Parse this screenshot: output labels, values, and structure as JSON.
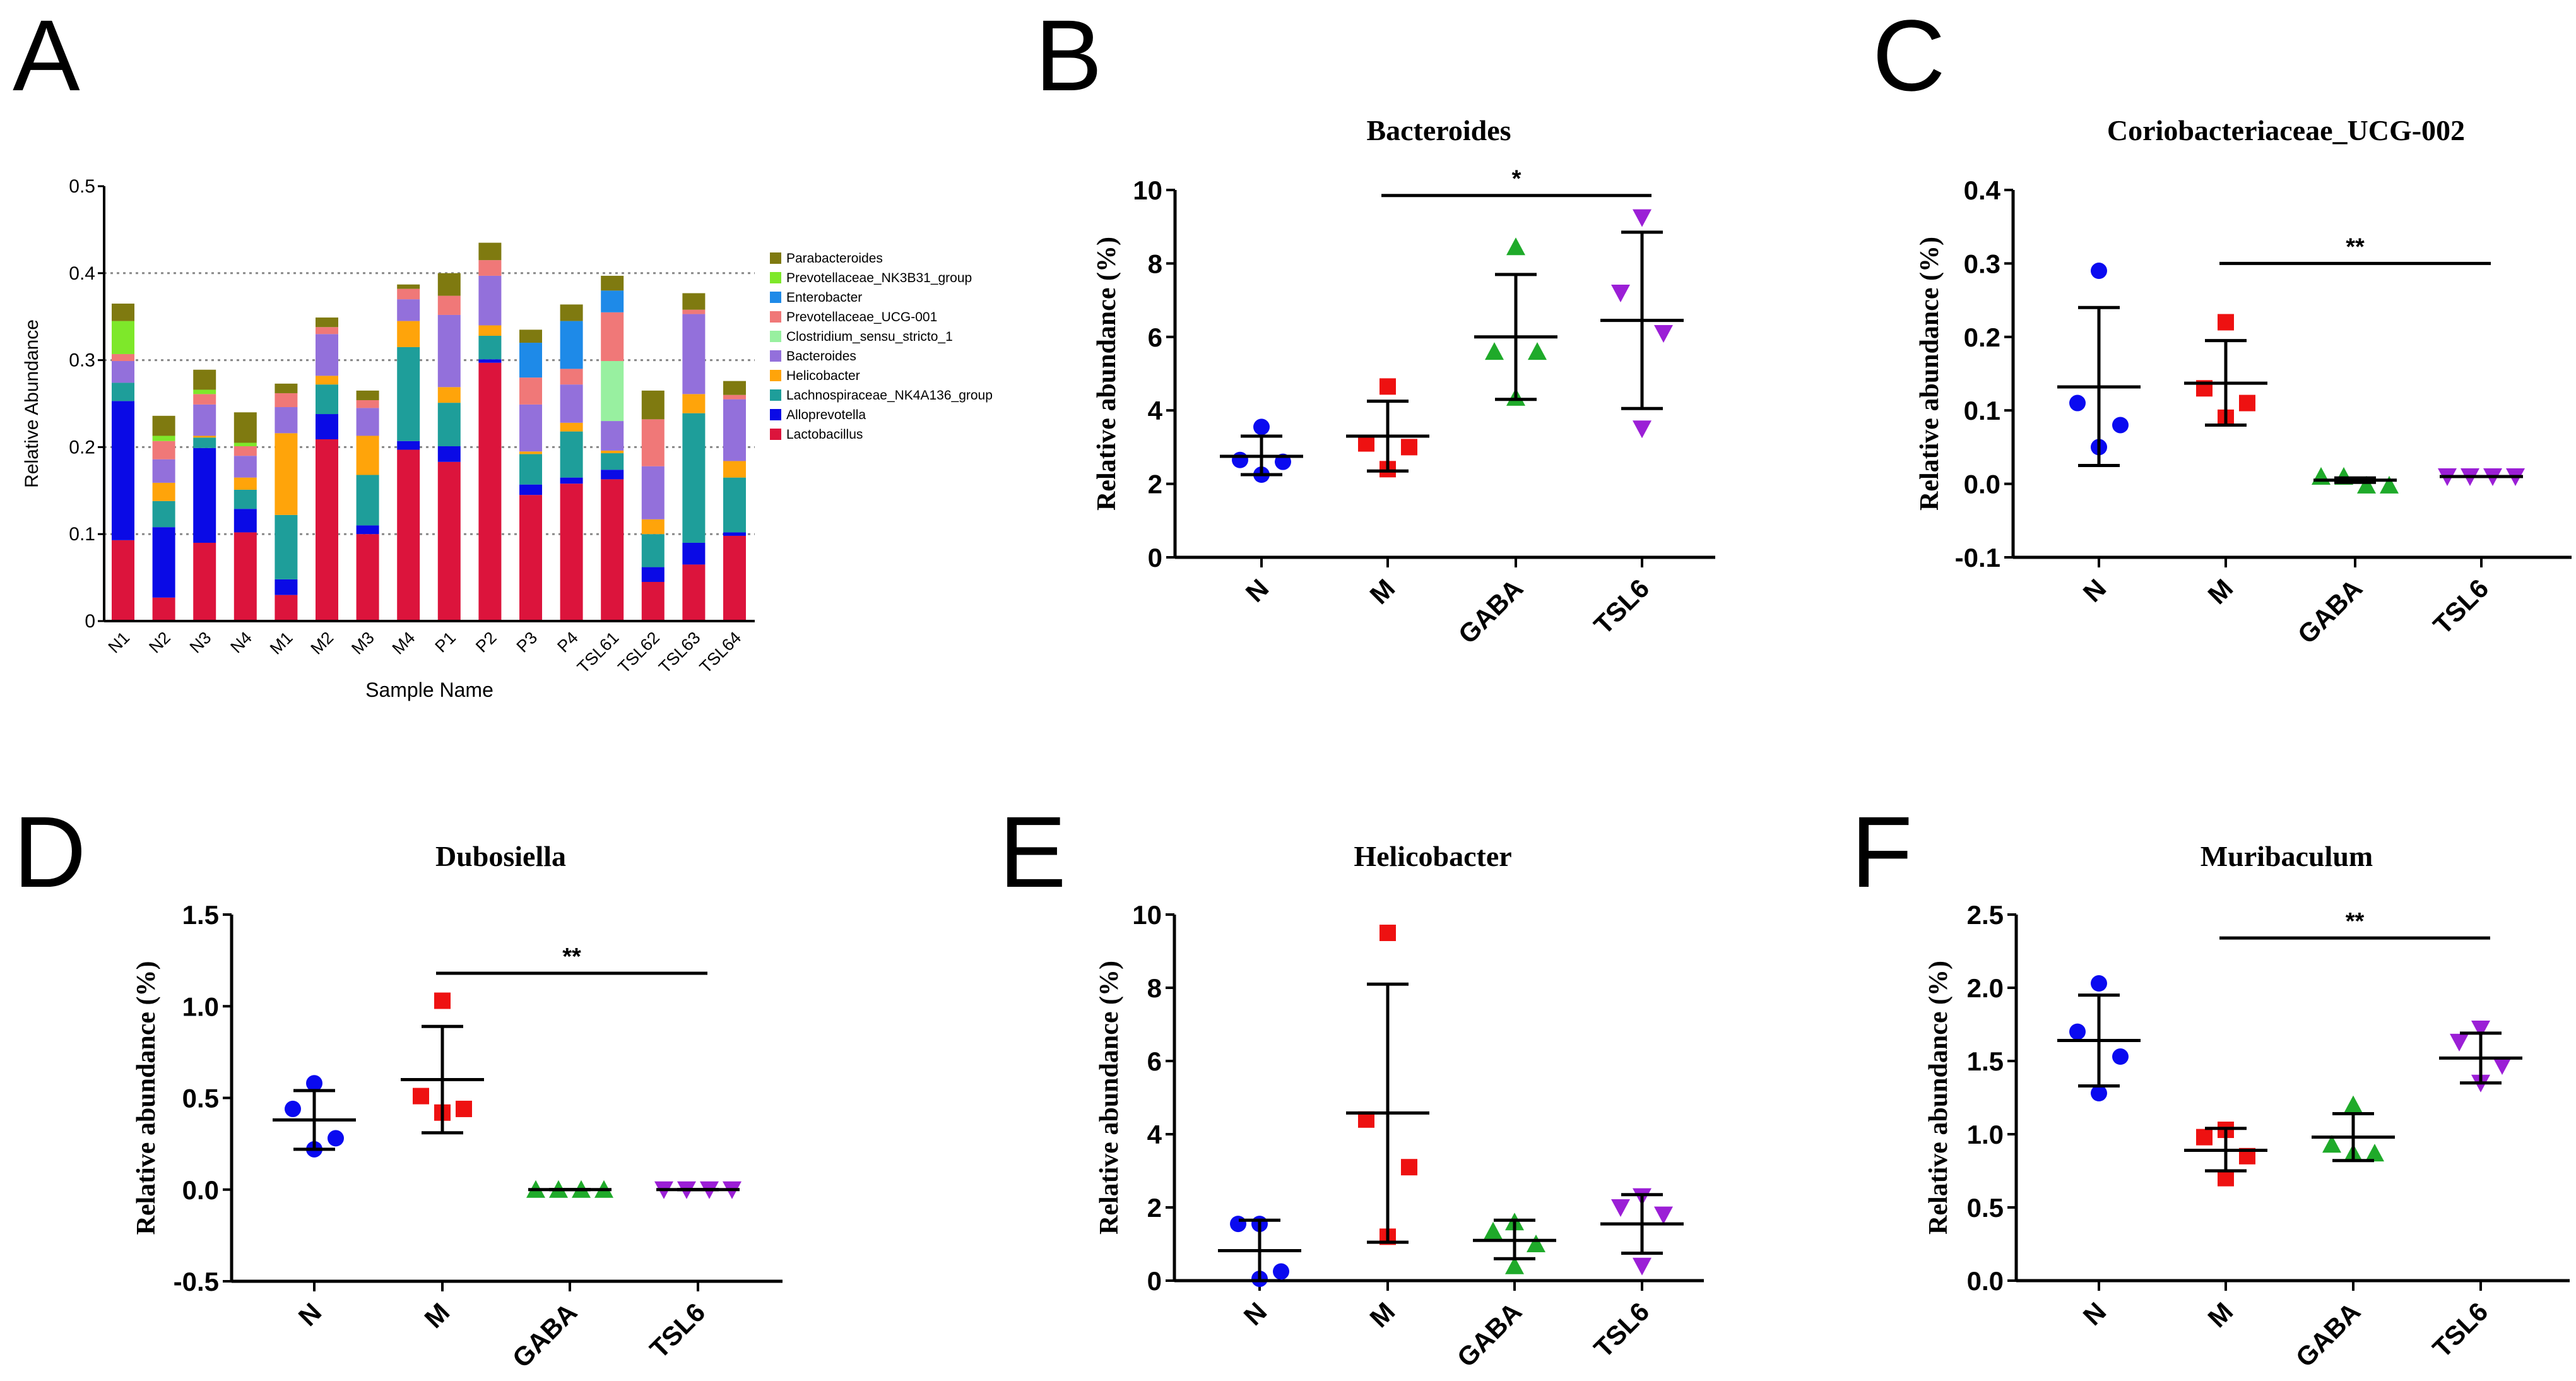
{
  "chart_data": [
    {
      "panel": "A",
      "type": "bar",
      "stacked": true,
      "title": "",
      "xlabel": "Sample Name",
      "ylabel": "Relative Abundance",
      "ylim": [
        0,
        0.5
      ],
      "yticks": [
        "0",
        "0.1",
        "0.2",
        "0.3",
        "0.4",
        "0.5"
      ],
      "grid": "dotted horizontal at 0.1-0.4",
      "legend_position": "right",
      "categories": [
        "N1",
        "N2",
        "N3",
        "N4",
        "M1",
        "M2",
        "M3",
        "M4",
        "P1",
        "P2",
        "P3",
        "P4",
        "TSL61",
        "TSL62",
        "TSL63",
        "TSL64"
      ],
      "series": [
        {
          "name": "Lactobacillus",
          "color": "#dc143c",
          "values": [
            0.093,
            0.027,
            0.09,
            0.102,
            0.03,
            0.209,
            0.1,
            0.197,
            0.183,
            0.297,
            0.145,
            0.158,
            0.163,
            0.045,
            0.065,
            0.098
          ]
        },
        {
          "name": "Alloprevotella",
          "color": "#0a0ae6",
          "values": [
            0.16,
            0.081,
            0.109,
            0.027,
            0.018,
            0.029,
            0.01,
            0.01,
            0.018,
            0.004,
            0.012,
            0.007,
            0.011,
            0.017,
            0.025,
            0.004
          ]
        },
        {
          "name": "Lachnospiraceae_NK4A136_group",
          "color": "#1e9e9a",
          "values": [
            0.021,
            0.03,
            0.012,
            0.022,
            0.074,
            0.034,
            0.058,
            0.108,
            0.05,
            0.027,
            0.035,
            0.053,
            0.019,
            0.038,
            0.149,
            0.063
          ]
        },
        {
          "name": "Helicobacter",
          "color": "#ffa40a",
          "values": [
            0,
            0.021,
            0.002,
            0.014,
            0.094,
            0.01,
            0.045,
            0.03,
            0.018,
            0.012,
            0.003,
            0.01,
            0.003,
            0.017,
            0.022,
            0.019
          ]
        },
        {
          "name": "Bacteroides",
          "color": "#9370db",
          "values": [
            0.025,
            0.027,
            0.036,
            0.025,
            0.03,
            0.048,
            0.032,
            0.025,
            0.083,
            0.057,
            0.054,
            0.044,
            0.034,
            0.061,
            0.092,
            0.071
          ]
        },
        {
          "name": "Clostridium_sensu_stricto_1",
          "color": "#98f0a0",
          "values": [
            0,
            0,
            0,
            0,
            0,
            0,
            0,
            0,
            0,
            0,
            0,
            0,
            0.069,
            0,
            0,
            0
          ]
        },
        {
          "name": "Prevotellaceae_UCG-001",
          "color": "#f07878",
          "values": [
            0.008,
            0.021,
            0.012,
            0.011,
            0.016,
            0.008,
            0.009,
            0.012,
            0.022,
            0.018,
            0.031,
            0.018,
            0.056,
            0.054,
            0.005,
            0.005
          ]
        },
        {
          "name": "Enterobacter",
          "color": "#1e8ae8",
          "values": [
            0,
            0,
            0,
            0,
            0,
            0,
            0,
            0,
            0,
            0,
            0.04,
            0.055,
            0.025,
            0,
            0,
            0
          ]
        },
        {
          "name": "Prevotellaceae_NK3B31_group",
          "color": "#7ee82a",
          "values": [
            0.038,
            0.006,
            0.005,
            0.004,
            0,
            0,
            0,
            0,
            0,
            0,
            0,
            0,
            0,
            0,
            0,
            0
          ]
        },
        {
          "name": "Parabacteroides",
          "color": "#7f7a10",
          "values": [
            0.02,
            0.023,
            0.023,
            0.035,
            0.011,
            0.011,
            0.011,
            0.005,
            0.026,
            0.02,
            0.015,
            0.019,
            0.017,
            0.033,
            0.019,
            0.016
          ]
        }
      ]
    },
    {
      "panel": "B",
      "type": "scatter",
      "title": "Bacteroides",
      "ylabel": "Relative abundance (%)",
      "ylim": [
        0,
        10
      ],
      "yticks": [
        "0",
        "2",
        "4",
        "6",
        "8",
        "10"
      ],
      "categories": [
        "N",
        "M",
        "GABA",
        "TSL6"
      ],
      "groups": [
        {
          "name": "N",
          "values": [
            3.55,
            2.65,
            2.6,
            2.25
          ],
          "mean": 2.75,
          "err": [
            2.25,
            3.3
          ]
        },
        {
          "name": "M",
          "values": [
            4.65,
            3.1,
            3.0,
            2.4
          ],
          "mean": 3.3,
          "err": [
            2.35,
            4.25
          ]
        },
        {
          "name": "GABA",
          "values": [
            8.45,
            5.6,
            5.6,
            4.35
          ],
          "mean": 6.0,
          "err": [
            4.3,
            7.7
          ]
        },
        {
          "name": "TSL6",
          "values": [
            9.25,
            7.2,
            6.1,
            3.5
          ],
          "mean": 6.45,
          "err": [
            4.05,
            8.85
          ]
        }
      ],
      "significance": {
        "from": "M",
        "to": "TSL6",
        "y": 9.85,
        "label": "*"
      }
    },
    {
      "panel": "C",
      "type": "scatter",
      "title": "Coriobacteriaceae_UCG-002",
      "ylabel": "Relative abundance (%)",
      "ylim": [
        -0.1,
        0.4
      ],
      "yticks": [
        "-0.1",
        "0.0",
        "0.1",
        "0.2",
        "0.3",
        "0.4"
      ],
      "categories": [
        "N",
        "M",
        "GABA",
        "TSL6"
      ],
      "groups": [
        {
          "name": "N",
          "values": [
            0.29,
            0.11,
            0.08,
            0.05
          ],
          "mean": 0.132,
          "err": [
            0.025,
            0.24
          ]
        },
        {
          "name": "M",
          "values": [
            0.22,
            0.13,
            0.11,
            0.09
          ],
          "mean": 0.137,
          "err": [
            0.08,
            0.195
          ]
        },
        {
          "name": "GABA",
          "values": [
            0.01,
            -0.002,
            -0.002,
            0.01
          ],
          "mean": 0.005,
          "err": [
            0.002,
            0.008
          ]
        },
        {
          "name": "TSL6",
          "values": [
            0.01,
            0.01,
            0.01,
            0.01
          ],
          "mean": 0.01,
          "err": [
            0.01,
            0.01
          ]
        }
      ],
      "significance": {
        "from": "M",
        "to": "TSL6",
        "y": 0.3,
        "label": "**"
      }
    },
    {
      "panel": "D",
      "type": "scatter",
      "title": "Dubosiella",
      "ylabel": "Relative abundance (%)",
      "ylim": [
        -0.5,
        1.5
      ],
      "yticks": [
        "-0.5",
        "0.0",
        "0.5",
        "1.0",
        "1.5"
      ],
      "categories": [
        "N",
        "M",
        "GABA",
        "TSL6"
      ],
      "groups": [
        {
          "name": "N",
          "values": [
            0.58,
            0.44,
            0.28,
            0.22
          ],
          "mean": 0.38,
          "err": [
            0.22,
            0.54
          ]
        },
        {
          "name": "M",
          "values": [
            1.03,
            0.51,
            0.44,
            0.42
          ],
          "mean": 0.6,
          "err": [
            0.31,
            0.89
          ]
        },
        {
          "name": "GABA",
          "values": [
            0,
            0,
            0,
            0
          ],
          "mean": 0,
          "err": [
            0,
            0
          ]
        },
        {
          "name": "TSL6",
          "values": [
            0,
            0,
            0,
            0
          ],
          "mean": 0,
          "err": [
            0,
            0
          ]
        }
      ],
      "significance": {
        "from": "M",
        "to": "TSL6",
        "y": 1.18,
        "label": "**"
      }
    },
    {
      "panel": "E",
      "type": "scatter",
      "title": "Helicobacter",
      "ylabel": "Relative abundance (%)",
      "ylim": [
        0,
        10
      ],
      "yticks": [
        "0",
        "2",
        "4",
        "6",
        "8",
        "10"
      ],
      "categories": [
        "N",
        "M",
        "GABA",
        "TSL6"
      ],
      "groups": [
        {
          "name": "N",
          "values": [
            1.55,
            1.55,
            0.25,
            0.05
          ],
          "mean": 0.82,
          "err": [
            0,
            1.65
          ]
        },
        {
          "name": "M",
          "values": [
            9.5,
            4.4,
            3.1,
            1.2
          ],
          "mean": 4.58,
          "err": [
            1.05,
            8.1
          ]
        },
        {
          "name": "GABA",
          "values": [
            1.6,
            1.35,
            1.0,
            0.4
          ],
          "mean": 1.1,
          "err": [
            0.6,
            1.65
          ]
        },
        {
          "name": "TSL6",
          "values": [
            2.3,
            2.0,
            1.8,
            0.4
          ],
          "mean": 1.55,
          "err": [
            0.75,
            2.35
          ]
        }
      ],
      "significance": null
    },
    {
      "panel": "F",
      "type": "scatter",
      "title": "Muribaculum",
      "ylabel": "Relative abundance (%)",
      "ylim": [
        0,
        2.5
      ],
      "yticks": [
        "0.0",
        "0.5",
        "1.0",
        "1.5",
        "2.0",
        "2.5"
      ],
      "categories": [
        "N",
        "M",
        "GABA",
        "TSL6"
      ],
      "groups": [
        {
          "name": "N",
          "values": [
            2.03,
            1.7,
            1.53,
            1.28
          ],
          "mean": 1.64,
          "err": [
            1.33,
            1.95
          ]
        },
        {
          "name": "M",
          "values": [
            1.03,
            0.98,
            0.85,
            0.7
          ],
          "mean": 0.89,
          "err": [
            0.75,
            1.04
          ]
        },
        {
          "name": "GABA",
          "values": [
            1.2,
            0.93,
            0.87,
            0.87
          ],
          "mean": 0.98,
          "err": [
            0.82,
            1.14
          ]
        },
        {
          "name": "TSL6",
          "values": [
            1.72,
            1.63,
            1.47,
            1.35
          ],
          "mean": 1.52,
          "err": [
            1.35,
            1.69
          ]
        }
      ],
      "significance": {
        "from": "M",
        "to": "TSL6",
        "y": 2.34,
        "label": "**"
      }
    }
  ],
  "group_colors": {
    "N": "#0a0af0",
    "M": "#ee1111",
    "GABA": "#1faa2a",
    "TSL6": "#9b1fd6"
  },
  "group_markers": {
    "N": "circle",
    "M": "square",
    "GABA": "triangle-up",
    "TSL6": "triangle-down"
  }
}
